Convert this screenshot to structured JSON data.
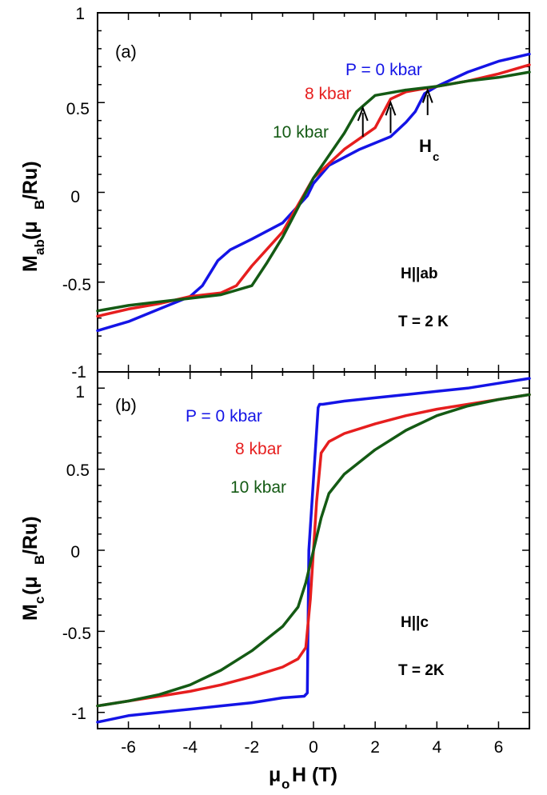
{
  "colors": {
    "blue": "#1414e6",
    "red": "#e61e1e",
    "green": "#145a14"
  },
  "xlabel": {
    "prefix": "μ",
    "sub": "o",
    "rest": "H (T)"
  },
  "x_tick_labels": [
    "-6",
    "-4",
    "-2",
    "0",
    "2",
    "4",
    "6"
  ],
  "chart_data": [
    {
      "type": "line",
      "panel_label": "(a)",
      "ylabel": {
        "main": "M",
        "sub": "ab",
        "mid": " (μ",
        "sub2": "B",
        "rest": "/Ru)"
      },
      "ylim": [
        -1,
        1
      ],
      "xlim": [
        -7,
        7
      ],
      "y_tick_labels": [
        "-1",
        "-0.5",
        "0",
        "0.5",
        "1"
      ],
      "conditions": [
        "H||ab",
        "T = 2 K"
      ],
      "annotation": {
        "main": "H",
        "sub": "c"
      },
      "series": [
        {
          "name": "P = 0 kbar",
          "color": "blue",
          "x": [
            -7,
            -6,
            -5,
            -4,
            -3.6,
            -3.1,
            -2.7,
            -2,
            -1,
            -0.2,
            0,
            0.5,
            1.5,
            2.5,
            3,
            3.3,
            3.6,
            4,
            5,
            6,
            7
          ],
          "y": [
            -0.77,
            -0.72,
            -0.65,
            -0.58,
            -0.52,
            -0.38,
            -0.32,
            -0.26,
            -0.17,
            -0.02,
            0.05,
            0.15,
            0.24,
            0.31,
            0.39,
            0.45,
            0.55,
            0.59,
            0.67,
            0.73,
            0.77
          ]
        },
        {
          "name": "8 kbar",
          "color": "red",
          "x": [
            -7,
            -6,
            -5,
            -4,
            -3,
            -2.5,
            -2,
            -1,
            0,
            1,
            2,
            2.5,
            3,
            4,
            5,
            6,
            7
          ],
          "y": [
            -0.69,
            -0.65,
            -0.62,
            -0.58,
            -0.56,
            -0.52,
            -0.41,
            -0.22,
            0.08,
            0.24,
            0.36,
            0.52,
            0.56,
            0.59,
            0.62,
            0.66,
            0.71
          ]
        },
        {
          "name": "10 kbar",
          "color": "green",
          "x": [
            -7,
            -6,
            -5,
            -4,
            -3,
            -2,
            -1.5,
            -1,
            0,
            1,
            1.4,
            1.6,
            2,
            3,
            4,
            5,
            6,
            7
          ],
          "y": [
            -0.66,
            -0.63,
            -0.61,
            -0.59,
            -0.57,
            -0.52,
            -0.39,
            -0.25,
            0.08,
            0.33,
            0.45,
            0.48,
            0.54,
            0.57,
            0.59,
            0.62,
            0.64,
            0.67
          ]
        }
      ],
      "series_labels": [
        "P = 0 kbar",
        "8 kbar",
        "10 kbar"
      ],
      "arrows_x": [
        1.6,
        2.5,
        3.7
      ]
    },
    {
      "type": "line",
      "panel_label": "(b)",
      "ylabel": {
        "main": "M",
        "sub": "c",
        "mid": " (μ",
        "sub2": "B",
        "rest": "/Ru)"
      },
      "ylim": [
        -1.1,
        1.1
      ],
      "xlim": [
        -7,
        7
      ],
      "y_tick_labels": [
        "-1",
        "-0.5",
        "0",
        "0.5",
        "1"
      ],
      "conditions": [
        "H||c",
        "T = 2K"
      ],
      "series": [
        {
          "name": "P = 0 kbar",
          "color": "blue",
          "x": [
            -7,
            -6,
            -5,
            -4,
            -3,
            -2,
            -1,
            -0.3,
            -0.2,
            -0.15,
            0.15,
            0.2,
            0.3,
            1,
            2,
            3,
            4,
            5,
            6,
            7
          ],
          "y": [
            -1.06,
            -1.02,
            -1.0,
            -0.98,
            -0.96,
            -0.94,
            -0.91,
            -0.9,
            -0.88,
            0.0,
            0.88,
            0.9,
            0.9,
            0.92,
            0.94,
            0.96,
            0.98,
            1.0,
            1.03,
            1.06
          ]
        },
        {
          "name": "8 kbar",
          "color": "red",
          "x": [
            -7,
            -6,
            -5,
            -4,
            -3,
            -2,
            -1,
            -0.5,
            -0.25,
            -0.1,
            0,
            0.1,
            0.25,
            0.5,
            1,
            2,
            3,
            4,
            5,
            6,
            7
          ],
          "y": [
            -0.96,
            -0.93,
            -0.9,
            -0.87,
            -0.83,
            -0.78,
            -0.72,
            -0.67,
            -0.6,
            -0.3,
            0.0,
            0.3,
            0.6,
            0.67,
            0.72,
            0.78,
            0.83,
            0.87,
            0.9,
            0.93,
            0.96
          ]
        },
        {
          "name": "10 kbar",
          "color": "green",
          "x": [
            -7,
            -6,
            -5,
            -4,
            -3,
            -2,
            -1,
            -0.5,
            -0.25,
            0,
            0.25,
            0.5,
            1,
            2,
            3,
            4,
            5,
            6,
            7
          ],
          "y": [
            -0.96,
            -0.93,
            -0.89,
            -0.83,
            -0.74,
            -0.62,
            -0.47,
            -0.35,
            -0.2,
            0.0,
            0.2,
            0.35,
            0.47,
            0.62,
            0.74,
            0.83,
            0.89,
            0.93,
            0.96
          ]
        }
      ],
      "series_labels": [
        "P = 0 kbar",
        "8 kbar",
        "10 kbar"
      ]
    }
  ]
}
